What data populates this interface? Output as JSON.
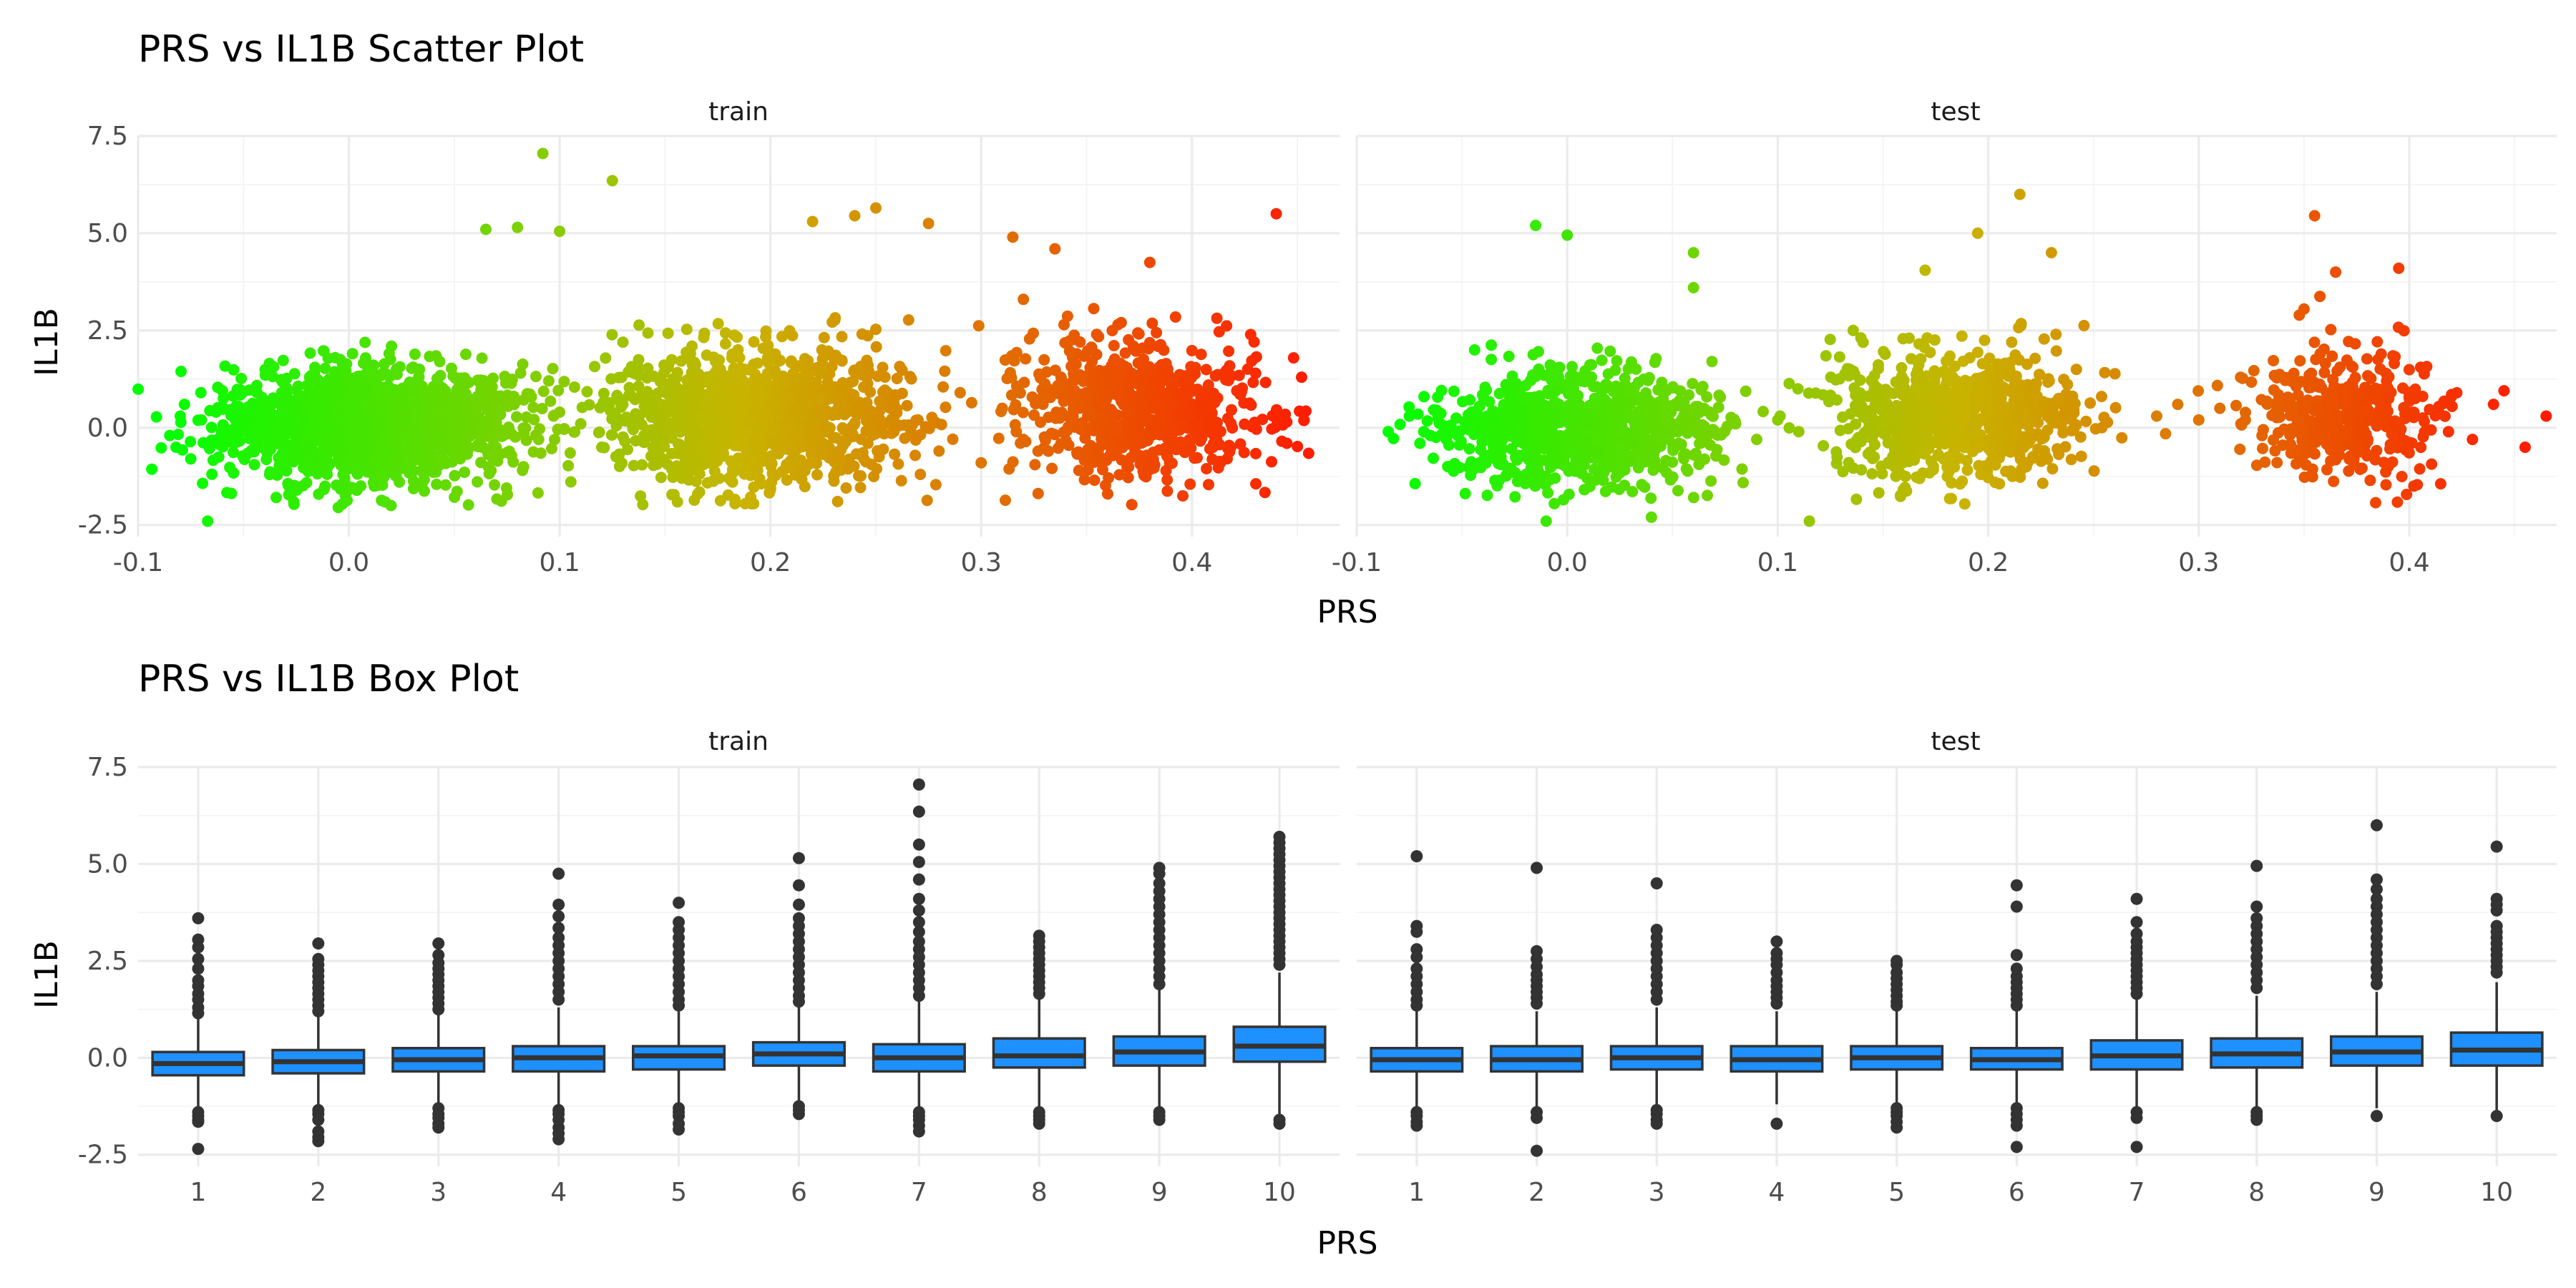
{
  "figure": {
    "titles": [
      "PRS vs IL1B Scatter Plot",
      "PRS vs IL1B Box Plot"
    ],
    "facets": [
      "train",
      "test"
    ],
    "xlabel": "PRS",
    "ylabel": "IL1B"
  },
  "colors": {
    "low": "#00ff00",
    "mid": "#c8b400",
    "high": "#ff1a00",
    "box_fill": "#1e90ff",
    "box_line": "#333333"
  },
  "chart_data": [
    {
      "type": "scatter",
      "title": "PRS vs IL1B Scatter Plot",
      "xlabel": "PRS",
      "ylabel": "IL1B",
      "xlim": [
        -0.1,
        0.47
      ],
      "ylim": [
        -2.8,
        7.5
      ],
      "xticks": [
        -0.1,
        0.0,
        0.1,
        0.2,
        0.3,
        0.4
      ],
      "xtick_labels": [
        "-0.1",
        "0.0",
        "0.1",
        "0.2",
        "0.3",
        "0.4"
      ],
      "yticks": [
        -2.5,
        0.0,
        2.5,
        5.0,
        7.5
      ],
      "ytick_labels": [
        "-2.5",
        "0.0",
        "2.5",
        "5.0",
        "7.5"
      ],
      "color_encoding": "PRS (green low to red high)",
      "panels": [
        {
          "name": "train",
          "clusters": [
            {
              "x_center": 0.01,
              "x_sd": 0.035,
              "y_center": 0.1,
              "y_sd": 0.75,
              "n": 1500
            },
            {
              "x_center": 0.195,
              "x_sd": 0.035,
              "y_center": 0.3,
              "y_sd": 0.85,
              "n": 1200
            },
            {
              "x_center": 0.375,
              "x_sd": 0.028,
              "y_center": 0.5,
              "y_sd": 0.85,
              "n": 700
            }
          ],
          "bridge_points": [
            [
              -0.085,
              -0.2
            ],
            [
              -0.08,
              0.3
            ],
            [
              -0.082,
              -0.5
            ],
            [
              -0.078,
              0.6
            ],
            [
              -0.075,
              -0.8
            ],
            [
              -0.07,
              0.2
            ],
            [
              0.09,
              -0.3
            ],
            [
              0.1,
              0.4
            ],
            [
              0.11,
              0.1
            ],
            [
              0.12,
              -0.5
            ],
            [
              0.13,
              0.6
            ],
            [
              0.14,
              -0.2
            ],
            [
              0.27,
              0.2
            ],
            [
              0.28,
              -0.6
            ],
            [
              0.29,
              0.9
            ],
            [
              0.3,
              -0.9
            ],
            [
              0.31,
              0.5
            ],
            [
              0.32,
              -0.3
            ]
          ],
          "outliers": [
            [
              -0.067,
              -2.4
            ],
            [
              0.092,
              7.05
            ],
            [
              0.125,
              6.35
            ],
            [
              0.1,
              5.05
            ],
            [
              0.08,
              5.15
            ],
            [
              0.065,
              5.1
            ],
            [
              0.25,
              5.65
            ],
            [
              0.24,
              5.45
            ],
            [
              0.275,
              5.25
            ],
            [
              0.22,
              5.3
            ],
            [
              0.315,
              4.9
            ],
            [
              0.335,
              4.6
            ],
            [
              0.38,
              4.25
            ],
            [
              0.44,
              5.5
            ],
            [
              0.445,
              -0.4
            ],
            [
              0.452,
              1.3
            ],
            [
              0.445,
              0.15
            ],
            [
              -0.005,
              -2.05
            ],
            [
              0.02,
              -2.0
            ],
            [
              0.36,
              -1.7
            ],
            [
              0.13,
              2.2
            ],
            [
              0.32,
              3.3
            ]
          ]
        },
        {
          "name": "test",
          "clusters": [
            {
              "x_center": 0.005,
              "x_sd": 0.033,
              "y_center": 0.0,
              "y_sd": 0.7,
              "n": 900
            },
            {
              "x_center": 0.185,
              "x_sd": 0.03,
              "y_center": 0.3,
              "y_sd": 0.8,
              "n": 800
            },
            {
              "x_center": 0.37,
              "x_sd": 0.022,
              "y_center": 0.35,
              "y_sd": 0.8,
              "n": 400
            }
          ],
          "bridge_points": [
            [
              -0.075,
              0.3
            ],
            [
              -0.07,
              -0.4
            ],
            [
              -0.068,
              0.8
            ],
            [
              -0.065,
              -0.2
            ],
            [
              0.08,
              0.1
            ],
            [
              0.09,
              -0.3
            ],
            [
              0.1,
              0.2
            ],
            [
              0.11,
              -0.1
            ],
            [
              0.28,
              0.3
            ],
            [
              0.29,
              0.6
            ],
            [
              0.3,
              0.2
            ],
            [
              0.31,
              0.5
            ],
            [
              0.32,
              0.1
            ],
            [
              0.42,
              0.8
            ],
            [
              0.43,
              -0.3
            ],
            [
              0.44,
              0.6
            ]
          ],
          "outliers": [
            [
              -0.085,
              -0.1
            ],
            [
              -0.015,
              5.2
            ],
            [
              0.0,
              4.95
            ],
            [
              0.06,
              4.5
            ],
            [
              0.06,
              3.6
            ],
            [
              0.215,
              6.0
            ],
            [
              0.195,
              5.0
            ],
            [
              0.17,
              4.05
            ],
            [
              0.23,
              4.5
            ],
            [
              0.355,
              5.45
            ],
            [
              0.365,
              4.0
            ],
            [
              0.395,
              4.1
            ],
            [
              0.465,
              0.3
            ],
            [
              0.445,
              0.95
            ],
            [
              0.455,
              -0.5
            ],
            [
              -0.01,
              -2.4
            ],
            [
              0.04,
              -2.3
            ],
            [
              0.115,
              -2.4
            ],
            [
              0.39,
              -1.0
            ],
            [
              0.35,
              3.05
            ]
          ]
        }
      ]
    },
    {
      "type": "box",
      "title": "PRS vs IL1B Box Plot",
      "xlabel": "PRS",
      "ylabel": "IL1B",
      "categories": [
        "1",
        "2",
        "3",
        "4",
        "5",
        "6",
        "7",
        "8",
        "9",
        "10"
      ],
      "ylim": [
        -2.8,
        7.5
      ],
      "yticks": [
        -2.5,
        0.0,
        2.5,
        5.0,
        7.5
      ],
      "ytick_labels": [
        "-2.5",
        "0.0",
        "2.5",
        "5.0",
        "7.5"
      ],
      "panels": [
        {
          "name": "train",
          "boxes": [
            {
              "q1": -0.45,
              "median": -0.15,
              "q3": 0.15,
              "whisker_low": -1.3,
              "whisker_high": 1.05,
              "outliers": [
                3.6,
                3.05,
                2.85,
                2.55,
                2.3,
                2.0,
                1.85,
                1.65,
                1.5,
                1.3,
                1.15,
                -1.4,
                -1.5,
                -1.6,
                -1.65,
                -2.35
              ]
            },
            {
              "q1": -0.4,
              "median": -0.1,
              "q3": 0.2,
              "whisker_low": -1.3,
              "whisker_high": 1.1,
              "outliers": [
                2.95,
                2.55,
                2.4,
                2.25,
                2.1,
                1.95,
                1.8,
                1.65,
                1.5,
                1.35,
                1.2,
                -1.35,
                -1.45,
                -1.6,
                -1.9,
                -2.05,
                -2.15
              ]
            },
            {
              "q1": -0.35,
              "median": -0.05,
              "q3": 0.25,
              "whisker_low": -1.2,
              "whisker_high": 1.15,
              "outliers": [
                2.95,
                2.65,
                2.45,
                2.3,
                2.15,
                2.0,
                1.85,
                1.7,
                1.55,
                1.4,
                1.25,
                -1.3,
                -1.45,
                -1.55,
                -1.7,
                -1.8
              ]
            },
            {
              "q1": -0.35,
              "median": 0.0,
              "q3": 0.3,
              "whisker_low": -1.25,
              "whisker_high": 1.3,
              "outliers": [
                4.75,
                3.95,
                3.65,
                3.35,
                3.1,
                2.9,
                2.7,
                2.5,
                2.3,
                2.1,
                1.9,
                1.7,
                1.5,
                -1.35,
                -1.45,
                -1.6,
                -1.8,
                -1.95,
                -2.1
              ]
            },
            {
              "q1": -0.3,
              "median": 0.05,
              "q3": 0.3,
              "whisker_low": -1.2,
              "whisker_high": 1.25,
              "outliers": [
                4.0,
                3.5,
                3.3,
                3.1,
                2.9,
                2.7,
                2.5,
                2.3,
                2.1,
                1.9,
                1.7,
                1.5,
                1.35,
                -1.3,
                -1.4,
                -1.5,
                -1.7,
                -1.85
              ]
            },
            {
              "q1": -0.2,
              "median": 0.1,
              "q3": 0.4,
              "whisker_low": -1.1,
              "whisker_high": 1.35,
              "outliers": [
                5.15,
                4.45,
                3.95,
                3.6,
                3.4,
                3.2,
                3.0,
                2.8,
                2.6,
                2.4,
                2.2,
                2.0,
                1.8,
                1.6,
                1.45,
                -1.25,
                -1.35,
                -1.45
              ]
            },
            {
              "q1": -0.35,
              "median": 0.0,
              "q3": 0.35,
              "whisker_low": -1.3,
              "whisker_high": 1.5,
              "outliers": [
                7.05,
                6.35,
                5.5,
                5.05,
                4.6,
                4.1,
                3.8,
                3.5,
                3.25,
                3.0,
                2.8,
                2.6,
                2.4,
                2.2,
                2.0,
                1.8,
                1.6,
                -1.4,
                -1.5,
                -1.6,
                -1.75,
                -1.9
              ]
            },
            {
              "q1": -0.25,
              "median": 0.05,
              "q3": 0.5,
              "whisker_low": -1.25,
              "whisker_high": 1.55,
              "outliers": [
                3.15,
                3.0,
                2.85,
                2.7,
                2.55,
                2.4,
                2.25,
                2.1,
                1.95,
                1.8,
                1.65,
                -1.4,
                -1.5,
                -1.6,
                -1.7
              ]
            },
            {
              "q1": -0.2,
              "median": 0.15,
              "q3": 0.55,
              "whisker_low": -1.35,
              "whisker_high": 1.75,
              "outliers": [
                4.9,
                4.75,
                4.5,
                4.3,
                4.1,
                3.9,
                3.7,
                3.5,
                3.3,
                3.1,
                2.9,
                2.7,
                2.5,
                2.3,
                2.1,
                1.9,
                -1.4,
                -1.5,
                -1.6
              ]
            },
            {
              "q1": -0.1,
              "median": 0.3,
              "q3": 0.8,
              "whisker_low": -1.5,
              "whisker_high": 2.2,
              "outliers": [
                5.7,
                5.55,
                5.4,
                5.25,
                5.1,
                4.95,
                4.8,
                4.65,
                4.5,
                4.35,
                4.2,
                4.05,
                3.9,
                3.75,
                3.6,
                3.45,
                3.3,
                3.15,
                3.0,
                2.85,
                2.7,
                2.55,
                2.4,
                -1.6,
                -1.7
              ]
            }
          ]
        },
        {
          "name": "test",
          "boxes": [
            {
              "q1": -0.35,
              "median": -0.05,
              "q3": 0.25,
              "whisker_low": -1.3,
              "whisker_high": 1.2,
              "outliers": [
                5.2,
                3.4,
                3.25,
                2.8,
                2.6,
                2.3,
                2.1,
                1.9,
                1.7,
                1.5,
                1.35,
                -1.4,
                -1.5,
                -1.65,
                -1.75
              ]
            },
            {
              "q1": -0.35,
              "median": -0.05,
              "q3": 0.3,
              "whisker_low": -1.3,
              "whisker_high": 1.2,
              "outliers": [
                4.9,
                2.75,
                2.55,
                2.35,
                2.15,
                2.0,
                1.85,
                1.7,
                1.55,
                1.4,
                -1.4,
                -1.55,
                -2.4
              ]
            },
            {
              "q1": -0.3,
              "median": 0.0,
              "q3": 0.3,
              "whisker_low": -1.25,
              "whisker_high": 1.3,
              "outliers": [
                4.5,
                3.3,
                3.1,
                2.9,
                2.7,
                2.5,
                2.3,
                2.1,
                1.9,
                1.7,
                1.5,
                -1.35,
                -1.45,
                -1.6,
                -1.7
              ]
            },
            {
              "q1": -0.35,
              "median": -0.05,
              "q3": 0.3,
              "whisker_low": -1.2,
              "whisker_high": 1.2,
              "outliers": [
                3.0,
                2.7,
                2.55,
                2.4,
                2.2,
                2.0,
                1.85,
                1.7,
                1.55,
                1.4,
                -1.7
              ]
            },
            {
              "q1": -0.3,
              "median": 0.0,
              "q3": 0.3,
              "whisker_low": -1.2,
              "whisker_high": 1.2,
              "outliers": [
                2.5,
                2.4,
                2.2,
                2.05,
                1.9,
                1.75,
                1.6,
                1.45,
                1.35,
                -1.3,
                -1.4,
                -1.5,
                -1.65,
                -1.8
              ]
            },
            {
              "q1": -0.3,
              "median": -0.05,
              "q3": 0.25,
              "whisker_low": -1.2,
              "whisker_high": 1.2,
              "outliers": [
                4.45,
                3.9,
                2.65,
                2.3,
                2.1,
                1.95,
                1.8,
                1.65,
                1.5,
                1.35,
                -1.3,
                -1.45,
                -1.6,
                -1.75,
                -2.3
              ]
            },
            {
              "q1": -0.3,
              "median": 0.05,
              "q3": 0.45,
              "whisker_low": -1.25,
              "whisker_high": 1.5,
              "outliers": [
                4.1,
                3.5,
                3.2,
                3.0,
                2.85,
                2.7,
                2.55,
                2.4,
                2.25,
                2.1,
                1.95,
                1.8,
                1.65,
                -1.4,
                -1.55,
                -2.3
              ]
            },
            {
              "q1": -0.25,
              "median": 0.1,
              "q3": 0.5,
              "whisker_low": -1.25,
              "whisker_high": 1.6,
              "outliers": [
                4.95,
                3.9,
                3.6,
                3.4,
                3.2,
                3.0,
                2.8,
                2.6,
                2.4,
                2.2,
                2.0,
                1.8,
                -1.4,
                -1.5,
                -1.6
              ]
            },
            {
              "q1": -0.2,
              "median": 0.15,
              "q3": 0.55,
              "whisker_low": -1.3,
              "whisker_high": 1.7,
              "outliers": [
                6.0,
                4.6,
                4.35,
                4.1,
                3.9,
                3.7,
                3.5,
                3.3,
                3.1,
                2.9,
                2.7,
                2.5,
                2.3,
                2.1,
                1.9,
                -1.5
              ]
            },
            {
              "q1": -0.2,
              "median": 0.2,
              "q3": 0.65,
              "whisker_low": -1.35,
              "whisker_high": 1.95,
              "outliers": [
                5.45,
                4.1,
                3.95,
                3.8,
                3.4,
                3.25,
                3.1,
                2.95,
                2.8,
                2.65,
                2.5,
                2.35,
                2.2,
                -1.5
              ]
            }
          ]
        }
      ]
    }
  ]
}
